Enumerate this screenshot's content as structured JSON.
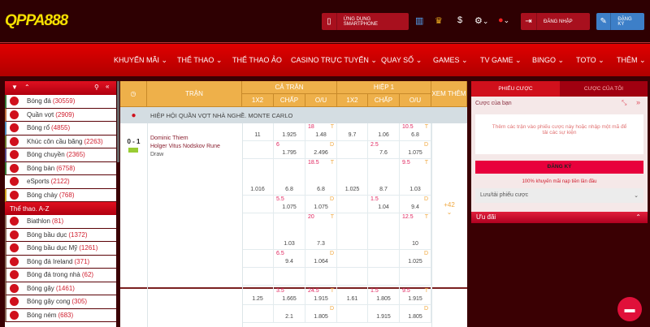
{
  "header": {
    "logo": "QPPA888",
    "app_button": "ỨNG DỤNG SMARTPHONE",
    "login": "ĐĂNG NHẬP",
    "register": "ĐĂNG KÝ",
    "currency_icon": "$"
  },
  "nav": [
    "KHUYẾN MÃI",
    "THỂ THAO",
    "THỂ THAO ẢO",
    "CASINO TRỰC TUYẾN",
    "QUAY SỐ",
    "GAMES",
    "TV GAME",
    "BINGO",
    "TOTO",
    "THÊM"
  ],
  "sidebar": {
    "top": [
      {
        "label": "Bóng đá",
        "count": "(30559)",
        "color": "#3a7a3a"
      },
      {
        "label": "Quần vợt",
        "count": "(2909)",
        "color": "#c07040"
      },
      {
        "label": "Bóng rổ",
        "count": "(4855)",
        "color": "#5090c0"
      },
      {
        "label": "Khúc côn cầu băng",
        "count": "(2263)",
        "color": "#6a7a30"
      },
      {
        "label": "Bóng chuyền",
        "count": "(2365)",
        "color": "#5a4a8a"
      },
      {
        "label": "Bóng bàn",
        "count": "(6758)",
        "color": "#3a7a3a"
      },
      {
        "label": "eSports",
        "count": "(2122)",
        "color": "transparent"
      },
      {
        "label": "Bóng chày",
        "count": "(768)",
        "color": "#d0a020"
      }
    ],
    "az_title": "Thể thao. A-Z",
    "az": [
      {
        "label": "Biathlon",
        "count": "(81)"
      },
      {
        "label": "Bóng bầu dục",
        "count": "(1372)"
      },
      {
        "label": "Bóng bầu dục Mỹ",
        "count": "(1261)"
      },
      {
        "label": "Bóng đá Ireland",
        "count": "(371)"
      },
      {
        "label": "Bóng đá trong nhà",
        "count": "(62)"
      },
      {
        "label": "Bóng gậy",
        "count": "(1461)"
      },
      {
        "label": "Bóng gậy cong",
        "count": "(305)"
      },
      {
        "label": "Bóng ném",
        "count": "(683)"
      }
    ]
  },
  "table": {
    "headers": {
      "match": "TRẬN",
      "full": "CẢ TRẬN",
      "half": "HIỆP 1",
      "more": "XEM THÊM",
      "cols": [
        "1X2",
        "CHẤP",
        "O/U",
        "1X2",
        "CHẤP",
        "O/U"
      ]
    },
    "league": "HIỆP HỘI QUẦN VỢT NHÀ NGHỀ. MONTE CARLO",
    "match": {
      "score": "0 - 1",
      "team1": "Dominic Thiem",
      "team2": "Holger Vitus Nodskov Rune",
      "draw": "Draw",
      "more": "+42"
    },
    "rows": [
      [
        {
          "od": "11"
        },
        {
          "od": "1.925"
        },
        {
          "ln": "18",
          "tg": "T",
          "od": "1.48"
        },
        {
          "od": "9.7"
        },
        {
          "od": "1.06"
        },
        {
          "ln": "10.5",
          "tg": "T",
          "od": "6.8"
        }
      ],
      [
        null,
        {
          "ln": "6",
          "od": "1.795"
        },
        {
          "tg": "D",
          "od": "2.496"
        },
        null,
        {
          "ln": "2.5",
          "od": "7.6"
        },
        {
          "tg": "D",
          "od": "1.075"
        }
      ],
      [
        {
          "od": "1.016"
        },
        {
          "od": "6.8"
        },
        {
          "ln": "18.5",
          "tg": "T",
          "od": "6.8"
        },
        {
          "od": "1.025"
        },
        {
          "od": "8.7"
        },
        {
          "ln": "9.5",
          "tg": "T",
          "od": "1.03"
        }
      ],
      [
        null,
        {
          "ln": "5.5",
          "od": "1.075"
        },
        {
          "tg": "D",
          "od": "1.075"
        },
        null,
        {
          "ln": "1.5",
          "od": "1.04"
        },
        {
          "tg": "D",
          "od": "9.4"
        }
      ],
      [
        null,
        {
          "od": "1.03"
        },
        {
          "ln": "20",
          "tg": "T",
          "od": "7.3"
        },
        null,
        null,
        {
          "ln": "12.5",
          "tg": "T",
          "od": "10"
        }
      ],
      [
        null,
        {
          "ln": "6.5",
          "od": "9.4"
        },
        {
          "tg": "D",
          "od": "1.064"
        },
        null,
        null,
        {
          "tg": "D",
          "od": "1.025"
        }
      ],
      [
        null,
        null,
        null,
        null,
        null,
        null
      ],
      [
        {
          "od": "1.25"
        },
        {
          "ln": "3.5",
          "od": "1.665"
        },
        {
          "ln": "24.5",
          "tg": "T",
          "od": "1.915"
        },
        {
          "od": "1.61"
        },
        {
          "ln": "1.5",
          "od": "1.805"
        },
        {
          "ln": "9.5",
          "tg": "T",
          "od": "1.915"
        }
      ],
      [
        null,
        {
          "od": "2.1"
        },
        {
          "tg": "D",
          "od": "1.805"
        },
        null,
        {
          "od": "1.915"
        },
        {
          "tg": "D",
          "od": "1.805"
        }
      ]
    ]
  },
  "betslip": {
    "tab_active": "PHIẾU CƯỢC",
    "tab_other": "CƯỢC CỦA TÔI",
    "your_bets": "Cược của bạn",
    "empty": "Thêm các trận vào phiếu cược này hoặc nhập một mã để tải các sự kiện",
    "register": "ĐĂNG KÝ",
    "promo": "100% khuyến mãi nạp tiền lần đầu",
    "save": "Lưu/tải phiếu cược",
    "offers": "Ưu đãi"
  }
}
